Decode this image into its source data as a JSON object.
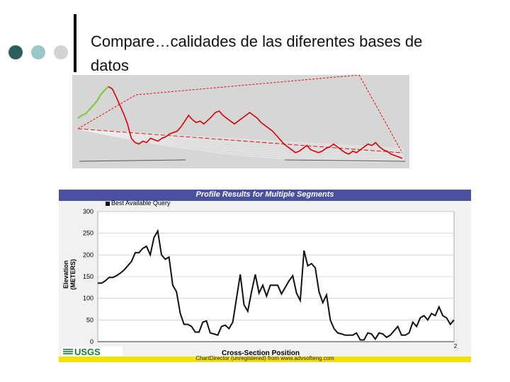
{
  "slide": {
    "title_line1": "Compare…calidades de las diferentes bases de",
    "title_line2": "datos",
    "bullet_colors": [
      "#2c5f5b",
      "#99c7cc",
      "#d3d3d3"
    ]
  },
  "top_chart": {
    "line_color": "#d80000",
    "guide_color": "#e01010"
  },
  "chart_data": [
    {
      "type": "line",
      "title": "",
      "series": [
        {
          "values": [
            66,
            70,
            72,
            78,
            84,
            90,
            99,
            105,
            110,
            107,
            96,
            84,
            72,
            58,
            38,
            32,
            30,
            34,
            32,
            38,
            36,
            34,
            38,
            40,
            44,
            46,
            48,
            54,
            62,
            70,
            64,
            60,
            62,
            58,
            63,
            68,
            74,
            76,
            70,
            66,
            62,
            58,
            62,
            66,
            70,
            74,
            70,
            66,
            60,
            56,
            52,
            48,
            42,
            36,
            30,
            26,
            22,
            18,
            20,
            24,
            28,
            22,
            20,
            18,
            20,
            24,
            26,
            30,
            26,
            22,
            18,
            16,
            20,
            18,
            22,
            26,
            30,
            28,
            32,
            26,
            22,
            20,
            16,
            14,
            12,
            10
          ]
        }
      ]
    },
    {
      "type": "line",
      "title": "Profile Results for Multiple Segments",
      "xlabel": "Cross-Section Position",
      "ylabel": "Elevation (METERS)",
      "ylim": [
        0,
        300
      ],
      "yticks": [
        "0",
        "50",
        "100",
        "150",
        "200",
        "250",
        "300"
      ],
      "x_end_label": "2",
      "grid": true,
      "legend": "top-left",
      "series": [
        {
          "name": "Best Available Query",
          "values": [
            135,
            135,
            140,
            148,
            148,
            152,
            158,
            165,
            175,
            185,
            205,
            205,
            215,
            220,
            200,
            240,
            255,
            200,
            190,
            195,
            130,
            115,
            65,
            40,
            40,
            35,
            22,
            22,
            45,
            48,
            20,
            18,
            15,
            35,
            38,
            30,
            45,
            100,
            155,
            85,
            70,
            115,
            155,
            112,
            130,
            105,
            130,
            130,
            130,
            110,
            125,
            140,
            152,
            112,
            95,
            210,
            175,
            180,
            170,
            115,
            90,
            108,
            50,
            30,
            20,
            18,
            15,
            15,
            15,
            20,
            4,
            4,
            20,
            18,
            6,
            20,
            18,
            10,
            15,
            25,
            35,
            15,
            15,
            20,
            45,
            35,
            55,
            60,
            50,
            65,
            60,
            80,
            60,
            55,
            40,
            50
          ]
        }
      ]
    }
  ],
  "bottom_chart": {
    "header_bg": "#4a50a0",
    "footer_text": "ChartDirector (unregistered) from www.advsofteng.com",
    "footer_bg": "#f3e200",
    "logo_text": "USGS"
  }
}
